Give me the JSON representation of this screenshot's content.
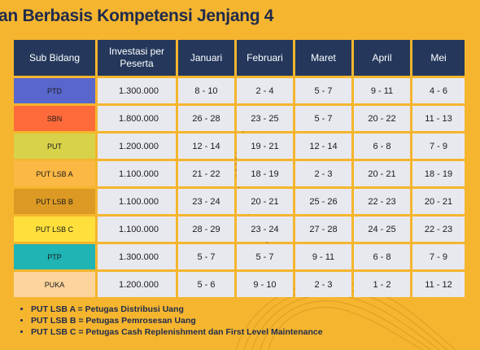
{
  "page": {
    "title": "an Berbasis Kompetensi Jenjang 4",
    "background_color": "#f5b52e"
  },
  "table": {
    "headers": [
      "Sub Bidang",
      "Investasi per Peserta",
      "Januari",
      "Februari",
      "Maret",
      "April",
      "Mei"
    ],
    "rows": [
      {
        "sub_bidang": "PTD",
        "color": "#5966cc",
        "investasi": "1.300.000",
        "values": [
          "8 - 10",
          "2 - 4",
          "5 - 7",
          "9 - 11",
          "4 - 6"
        ]
      },
      {
        "sub_bidang": "SBN",
        "color": "#ff6a3a",
        "investasi": "1.800.000",
        "values": [
          "26 - 28",
          "23 - 25",
          "5 - 7",
          "20 - 22",
          "11 - 13"
        ]
      },
      {
        "sub_bidang": "PUT",
        "color": "#d8d24a",
        "investasi": "1.200.000",
        "values": [
          "12 - 14",
          "19 - 21",
          "12 - 14",
          "6 - 8",
          "7 - 9"
        ]
      },
      {
        "sub_bidang": "PUT LSB A",
        "color": "#fbb844",
        "investasi": "1.100.000",
        "values": [
          "21 - 22",
          "18 - 19",
          "2 - 3",
          "20 - 21",
          "18 - 19"
        ]
      },
      {
        "sub_bidang": "PUT LSB B",
        "color": "#dc9a24",
        "investasi": "1.100.000",
        "values": [
          "23 - 24",
          "20 - 21",
          "25 - 26",
          "22 - 23",
          "20 - 21"
        ]
      },
      {
        "sub_bidang": "PUT LSB C",
        "color": "#ffdf3c",
        "investasi": "1.100.000",
        "values": [
          "28 - 29",
          "23 - 24",
          "27 - 28",
          "24 - 25",
          "22  - 23"
        ]
      },
      {
        "sub_bidang": "PTP",
        "color": "#20b4b4",
        "investasi": "1.300.000",
        "values": [
          "5 - 7",
          "5 - 7",
          "9 - 11",
          "6 - 8",
          "7 - 9"
        ]
      },
      {
        "sub_bidang": "PUKA",
        "color": "#fdd49c",
        "investasi": "1.200.000",
        "values": [
          "5 - 6",
          "9 - 10",
          "2 - 3",
          "1 - 2",
          "11 - 12"
        ]
      }
    ]
  },
  "notes": [
    "PUT LSB A = Petugas Distribusi Uang",
    "PUT LSB B = Petugas Pemrosesan Uang",
    "PUT LSB C = Petugas Cash Replenishment dan First Level Maintenance"
  ]
}
